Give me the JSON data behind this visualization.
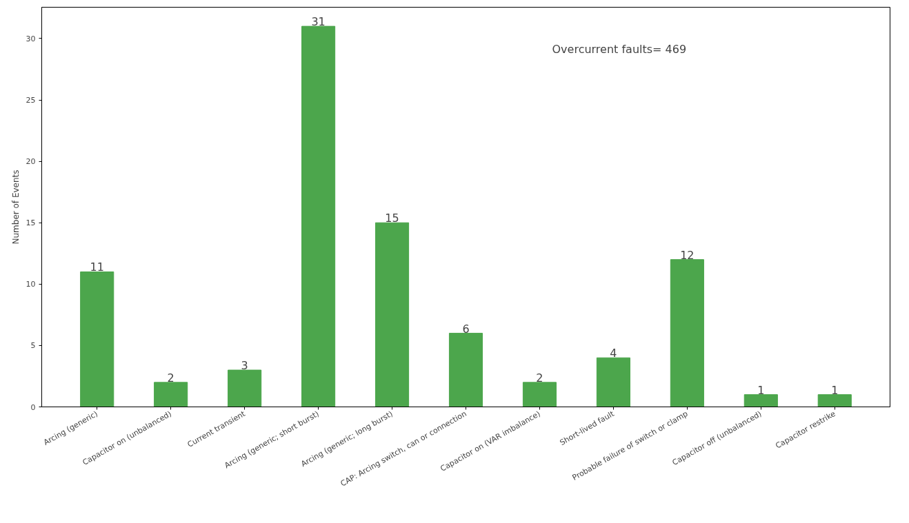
{
  "chart_data": {
    "type": "bar",
    "ylabel": "Number of Events",
    "categories": [
      "Arcing (generic)",
      "Capacitor on (unbalanced)",
      "Current transient",
      "Arcing (generic; short burst)",
      "Arcing (generic; long burst)",
      "CAP: Arcing switch, can or connection",
      "Capacitor on (VAR imbalance)",
      "Short-lived fault",
      "Probable failure of switch or clamp",
      "Capacitor off (unbalanced)",
      "Capacitor restrike"
    ],
    "values": [
      11,
      2,
      3,
      31,
      15,
      6,
      2,
      4,
      12,
      1,
      1
    ],
    "color": "#4ca64c",
    "ylim": [
      0,
      32.55
    ],
    "yticks": [
      0,
      5,
      10,
      15,
      20,
      25,
      30
    ],
    "data_labels": true,
    "grid": false,
    "annotations": [
      "Overcurrent faults= 469"
    ]
  }
}
